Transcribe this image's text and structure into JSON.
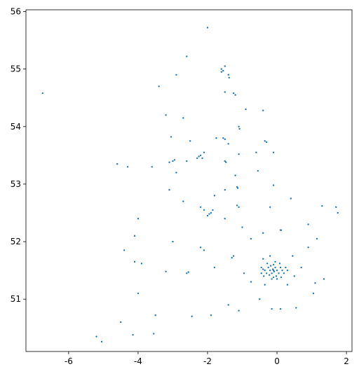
{
  "chart_data": {
    "type": "scatter",
    "x": [
      -6.75,
      -2.0,
      -2.6,
      -1.6,
      -1.55,
      -1.6,
      -1.5,
      -1.4,
      -1.38,
      -2.9,
      -3.4,
      -1.5,
      -1.2,
      -1.25,
      -0.9,
      -0.4,
      -3.2,
      -2.7,
      -1.1,
      -1.08,
      -3.05,
      -2.5,
      -1.55,
      -1.5,
      -1.75,
      -1.4,
      -0.35,
      -0.3,
      -2.2,
      -2.25,
      -2.15,
      -2.3,
      -2.1,
      -3.0,
      -2.95,
      -3.1,
      -1.47,
      -1.5,
      -0.6,
      -0.1,
      -1.1,
      -2.6,
      -3.6,
      -4.3,
      -4.6,
      -2.9,
      -1.2,
      -1.15,
      -1.13,
      -1.5,
      -1.8,
      -2.2,
      -1.9,
      -1.95,
      -2.0,
      -1.85,
      -2.1,
      -1.5,
      -1.15,
      -1.1,
      0.1,
      0.12,
      1.3,
      1.7,
      1.75,
      1.15,
      0.9,
      -0.75,
      -0.4,
      -1.25,
      -1.3,
      -2.6,
      -2.55,
      -3.2,
      -3.9,
      -4.1,
      -4.0,
      -4.1,
      -4.4,
      -3.0,
      -2.2,
      -2.1,
      -1.8,
      -0.95,
      -0.75,
      -1.4,
      -1.1,
      -1.9,
      -2.45,
      -3.5,
      -3.55,
      -4.15,
      -5.05,
      -5.2,
      -4.5,
      -4.0,
      0.1,
      -0.15,
      0.55,
      1.1,
      1.35,
      1.05,
      0.5,
      0.7,
      0.45,
      -0.2,
      -0.4,
      -0.45,
      -0.35,
      0.3,
      -0.5,
      -1.0,
      -0.2,
      0.4,
      0.9,
      -0.55,
      -0.1,
      -2.7,
      -3.1,
      -0.1,
      -0.12,
      -0.08,
      -0.2,
      0.0,
      -0.15,
      -0.05,
      -0.25,
      0.05,
      -0.3,
      -0.18,
      0.1,
      -0.02,
      -0.35,
      0.15,
      -0.1,
      -0.1,
      0.2,
      -0.4,
      -0.22,
      0.08,
      -0.28,
      0.25,
      -0.45,
      -0.05,
      0.0,
      -0.15,
      0.3,
      -0.38,
      0.12
    ],
    "values": [
      54.58,
      55.72,
      55.22,
      55.0,
      54.97,
      54.95,
      55.05,
      54.9,
      54.85,
      54.9,
      54.7,
      54.6,
      54.55,
      54.58,
      54.3,
      54.28,
      54.2,
      54.15,
      54.0,
      53.96,
      53.82,
      53.75,
      53.8,
      53.78,
      53.8,
      53.7,
      53.75,
      53.73,
      53.5,
      53.48,
      53.45,
      53.45,
      53.55,
      53.4,
      53.42,
      53.38,
      53.38,
      53.4,
      53.55,
      53.55,
      53.52,
      53.4,
      53.3,
      53.3,
      53.35,
      53.2,
      53.15,
      52.95,
      52.93,
      52.9,
      52.8,
      52.6,
      52.5,
      52.48,
      52.45,
      52.55,
      52.55,
      52.4,
      52.63,
      52.6,
      52.2,
      52.2,
      52.62,
      52.6,
      52.5,
      52.05,
      51.9,
      52.05,
      52.15,
      51.75,
      51.72,
      51.45,
      51.47,
      51.48,
      51.62,
      51.65,
      52.4,
      52.1,
      51.85,
      52.0,
      51.9,
      51.85,
      51.55,
      51.45,
      51.3,
      50.9,
      50.8,
      50.72,
      50.7,
      50.72,
      50.4,
      50.38,
      50.26,
      50.35,
      50.6,
      51.1,
      50.83,
      50.83,
      50.85,
      51.28,
      51.35,
      51.1,
      51.4,
      51.55,
      51.75,
      51.75,
      51.7,
      51.55,
      51.25,
      51.25,
      51.0,
      52.25,
      52.6,
      52.75,
      52.3,
      53.23,
      52.98,
      52.7,
      52.9,
      51.5,
      51.52,
      51.48,
      51.5,
      51.5,
      51.45,
      51.55,
      51.55,
      51.45,
      51.45,
      51.58,
      51.55,
      51.4,
      51.5,
      51.5,
      51.6,
      51.38,
      51.45,
      51.52,
      51.42,
      51.62,
      51.62,
      51.55,
      51.45,
      51.65,
      51.35,
      51.35,
      51.5,
      51.4,
      51.38
    ],
    "color": "#1f77b4",
    "xlim": [
      -7.23,
      2.16
    ],
    "xticks": [
      -6,
      -4,
      -2,
      0,
      2
    ],
    "ylim": [
      50.09,
      56.03
    ],
    "yticks": [
      51,
      52,
      53,
      54,
      55,
      56
    ]
  }
}
